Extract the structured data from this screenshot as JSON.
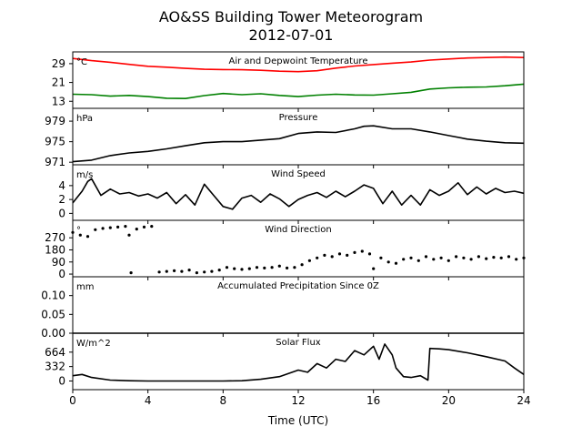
{
  "figure": {
    "title_line1": "AO&SS Building Tower Meteorogram",
    "title_line2": "2012-07-01",
    "xlabel": "Time (UTC)",
    "xticks": [
      "0",
      "4",
      "8",
      "12",
      "16",
      "20",
      "24"
    ]
  },
  "chart_data": [
    {
      "type": "line",
      "title": "Air and Depwoint Temperature",
      "unit": "°C",
      "xlim": [
        0,
        24
      ],
      "ylim": [
        10,
        34
      ],
      "yticks": [
        13,
        21,
        29
      ],
      "ytick_labels": [
        "13",
        "21",
        "29"
      ],
      "colors": [
        "#ff0000",
        "#008000"
      ],
      "x": [
        0,
        1,
        2,
        3,
        4,
        5,
        6,
        7,
        8,
        9,
        10,
        11,
        12,
        13,
        14,
        15,
        16,
        17,
        18,
        19,
        20,
        21,
        22,
        23,
        24
      ],
      "series": [
        {
          "values": [
            31.2,
            30.3,
            29.6,
            28.7,
            27.9,
            27.5,
            27.0,
            26.6,
            26.5,
            26.4,
            26.2,
            25.8,
            25.6,
            26.0,
            27.1,
            28.0,
            28.6,
            29.2,
            29.7,
            30.5,
            31.0,
            31.4,
            31.6,
            31.8,
            31.6
          ]
        },
        {
          "values": [
            16.0,
            15.8,
            15.2,
            15.5,
            15.0,
            14.3,
            14.2,
            15.4,
            16.3,
            15.8,
            16.2,
            15.5,
            15.0,
            15.6,
            16.0,
            15.7,
            15.6,
            16.2,
            16.8,
            18.2,
            18.7,
            19.0,
            19.1,
            19.6,
            20.3
          ]
        }
      ]
    },
    {
      "type": "line",
      "title": "Pressure",
      "unit": "hPa",
      "xlim": [
        0,
        24
      ],
      "ylim": [
        970.5,
        981.5
      ],
      "yticks": [
        971,
        975,
        979
      ],
      "ytick_labels": [
        "971",
        "975",
        "979"
      ],
      "colors": [
        "#000000"
      ],
      "x": [
        0,
        1,
        2,
        3,
        4,
        5,
        6,
        7,
        8,
        9,
        10,
        11,
        12,
        13,
        14,
        15,
        15.5,
        16,
        17,
        18,
        19,
        20,
        21,
        22,
        23,
        24
      ],
      "series": [
        {
          "values": [
            971.1,
            971.4,
            972.3,
            972.8,
            973.1,
            973.6,
            974.2,
            974.8,
            975.0,
            975.0,
            975.3,
            975.6,
            976.6,
            976.9,
            976.8,
            977.5,
            978.0,
            978.1,
            977.5,
            977.5,
            976.9,
            976.2,
            975.5,
            975.1,
            974.8,
            974.7
          ]
        }
      ]
    },
    {
      "type": "line",
      "title": "Wind Speed",
      "unit": "m/s",
      "xlim": [
        0,
        24
      ],
      "ylim": [
        -1,
        7
      ],
      "yticks": [
        0,
        2,
        4
      ],
      "ytick_labels": [
        "0",
        "2",
        "4"
      ],
      "colors": [
        "#000000"
      ],
      "x": [
        0,
        0.5,
        0.8,
        1,
        1.5,
        2,
        2.5,
        3,
        3.5,
        4,
        4.5,
        5,
        5.5,
        6,
        6.5,
        7,
        7.5,
        8,
        8.5,
        9,
        9.5,
        10,
        10.5,
        11,
        11.5,
        12,
        12.5,
        13,
        13.5,
        14,
        14.5,
        15,
        15.5,
        16,
        16.5,
        17,
        17.5,
        18,
        18.5,
        19,
        19.5,
        20,
        20.5,
        21,
        21.5,
        22,
        22.5,
        23,
        23.5,
        24
      ],
      "series": [
        {
          "values": [
            1.5,
            3.2,
            4.6,
            5.0,
            2.6,
            3.5,
            2.8,
            3.0,
            2.5,
            2.8,
            2.2,
            3.0,
            1.4,
            2.7,
            1.2,
            4.2,
            2.6,
            1.0,
            0.6,
            2.2,
            2.6,
            1.6,
            2.8,
            2.1,
            1.0,
            2.0,
            2.6,
            3.0,
            2.3,
            3.2,
            2.4,
            3.2,
            4.1,
            3.6,
            1.4,
            3.2,
            1.2,
            2.6,
            1.2,
            3.4,
            2.6,
            3.2,
            4.4,
            2.7,
            3.8,
            2.8,
            3.6,
            3.0,
            3.2,
            2.9
          ]
        }
      ]
    },
    {
      "type": "scatter",
      "title": "Wind Direction",
      "unit": "°",
      "xlim": [
        0,
        24
      ],
      "ylim": [
        -20,
        400
      ],
      "yticks": [
        0,
        90,
        180,
        270
      ],
      "ytick_labels": [
        "0",
        "90",
        "180",
        "270"
      ],
      "colors": [
        "#000000"
      ],
      "x": [
        0,
        0.4,
        0.8,
        1.2,
        1.6,
        2.0,
        2.4,
        2.8,
        3.0,
        3.1,
        3.4,
        3.8,
        4.2,
        4.6,
        5.0,
        5.4,
        5.8,
        6.2,
        6.6,
        7.0,
        7.4,
        7.8,
        8.2,
        8.6,
        9.0,
        9.4,
        9.8,
        10.2,
        10.6,
        11.0,
        11.4,
        11.8,
        12.2,
        12.6,
        13.0,
        13.4,
        13.8,
        14.2,
        14.6,
        15.0,
        15.4,
        15.8,
        16.0,
        16.4,
        16.8,
        17.2,
        17.6,
        18.0,
        18.4,
        18.8,
        19.2,
        19.6,
        20.0,
        20.4,
        20.8,
        21.2,
        21.6,
        22.0,
        22.4,
        22.8,
        23.2,
        23.6,
        24.0
      ],
      "series": [
        {
          "values": [
            310,
            290,
            280,
            330,
            340,
            345,
            350,
            355,
            290,
            10,
            335,
            350,
            355,
            15,
            20,
            25,
            20,
            30,
            10,
            15,
            20,
            30,
            50,
            40,
            35,
            40,
            50,
            45,
            50,
            60,
            45,
            50,
            70,
            100,
            120,
            140,
            130,
            150,
            140,
            160,
            170,
            150,
            40,
            120,
            90,
            80,
            110,
            120,
            100,
            130,
            110,
            120,
            100,
            130,
            120,
            110,
            130,
            115,
            125,
            120,
            130,
            110,
            120
          ]
        }
      ]
    },
    {
      "type": "line",
      "title": "Accumulated Precipitation Since 0Z",
      "unit": "mm",
      "xlim": [
        0,
        24
      ],
      "ylim": [
        0,
        0.15
      ],
      "yticks": [
        0.0,
        0.05,
        0.1
      ],
      "ytick_labels": [
        "0.00",
        "0.05",
        "0.10"
      ],
      "colors": [
        "#000000"
      ],
      "x": [
        0,
        24
      ],
      "series": [
        {
          "values": [
            0,
            0
          ]
        }
      ]
    },
    {
      "type": "line",
      "title": "Solar Flux",
      "unit": "W/m^2",
      "xlim": [
        0,
        24
      ],
      "ylim": [
        -200,
        1100
      ],
      "yticks": [
        0,
        332,
        664
      ],
      "ytick_labels": [
        "0",
        "332",
        "664"
      ],
      "colors": [
        "#000000"
      ],
      "x": [
        0,
        0.5,
        1,
        2,
        3,
        4,
        5,
        6,
        7,
        8,
        9,
        10,
        11,
        12,
        12.5,
        13,
        13.5,
        14,
        14.5,
        15,
        15.5,
        16,
        16.3,
        16.6,
        17,
        17.2,
        17.6,
        18,
        18.5,
        18.9,
        19.0,
        19.5,
        20,
        21,
        22,
        23,
        23.5,
        24
      ],
      "series": [
        {
          "values": [
            120,
            150,
            80,
            20,
            5,
            0,
            0,
            0,
            0,
            0,
            5,
            40,
            100,
            250,
            200,
            400,
            300,
            500,
            450,
            700,
            600,
            800,
            500,
            850,
            600,
            300,
            100,
            80,
            120,
            20,
            750,
            740,
            720,
            650,
            560,
            460,
            300,
            150
          ]
        }
      ]
    }
  ]
}
